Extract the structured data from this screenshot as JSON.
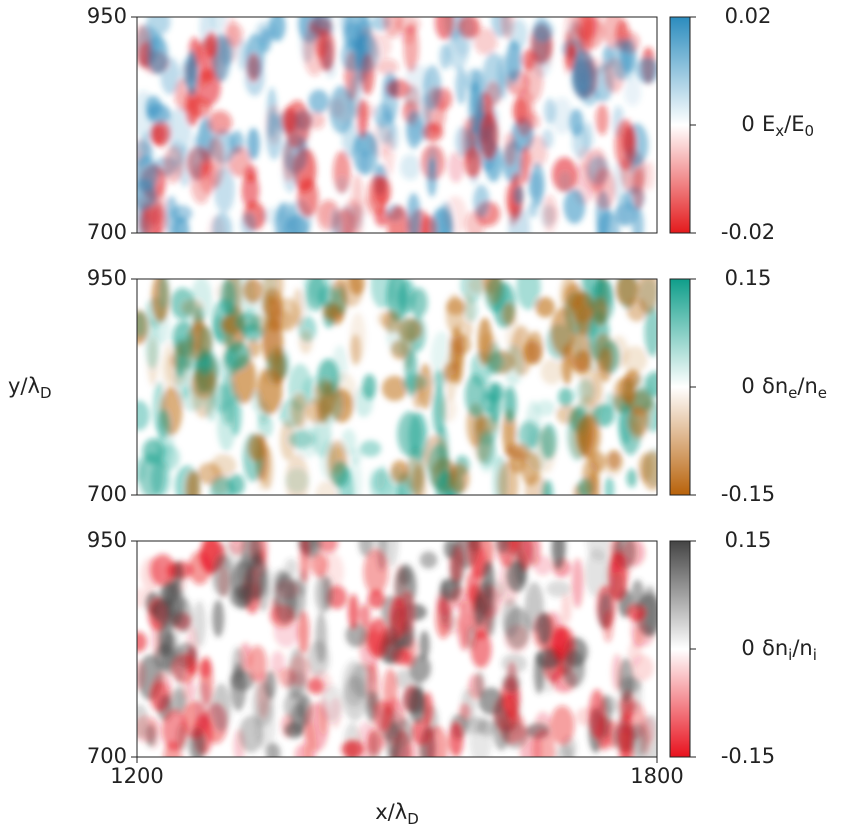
{
  "ylabel": [
    "y/λ",
    "D"
  ],
  "chart_data": [
    {
      "type": "heatmap",
      "xlim": [
        1200,
        1800
      ],
      "ylim": [
        700,
        950
      ],
      "yticks": [
        700,
        950
      ],
      "clim": [
        -0.02,
        0.02
      ],
      "cticks": [
        -0.02,
        0,
        0.02
      ],
      "colormap": [
        "#e31a1c",
        "#ffffff",
        "#2b8cbe"
      ],
      "colorbar_label": [
        "E",
        "x",
        "/E",
        "0"
      ]
    },
    {
      "type": "heatmap",
      "xlim": [
        1200,
        1800
      ],
      "ylim": [
        700,
        950
      ],
      "yticks": [
        700,
        950
      ],
      "clim": [
        -0.15,
        0.15
      ],
      "cticks": [
        -0.15,
        0,
        0.15
      ],
      "colormap": [
        "#b8620a",
        "#ffffff",
        "#0f9e8a"
      ],
      "colorbar_label": [
        "δn",
        "e",
        "/n",
        "e"
      ]
    },
    {
      "type": "heatmap",
      "xlim": [
        1200,
        1800
      ],
      "ylim": [
        700,
        950
      ],
      "yticks": [
        700,
        950
      ],
      "xticks": [
        1200,
        1800
      ],
      "xlabel": [
        "x/λ",
        "D"
      ],
      "clim": [
        -0.15,
        0.15
      ],
      "cticks": [
        -0.15,
        0,
        0.15
      ],
      "colormap": [
        "#e8111d",
        "#ffffff",
        "#444444"
      ],
      "colorbar_label": [
        "δn",
        "i",
        "/n",
        "i"
      ]
    }
  ]
}
